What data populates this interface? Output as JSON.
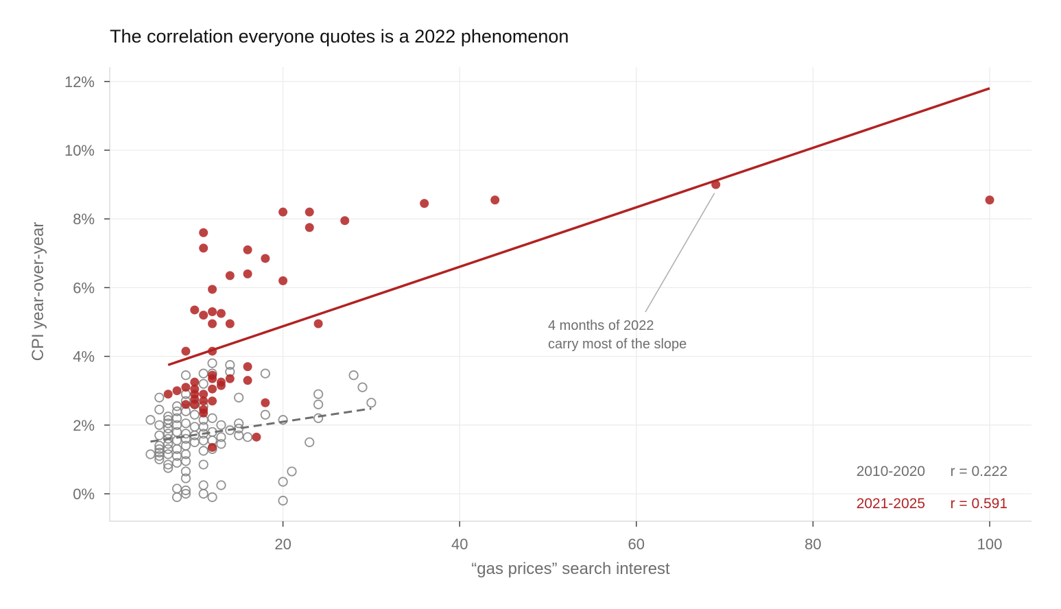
{
  "chart_data": {
    "type": "scatter",
    "title": "The correlation everyone quotes is a 2022 phenomenon",
    "xlabel": "“gas prices” search interest",
    "ylabel": "CPI year-over-year",
    "xlim": [
      0,
      105
    ],
    "ylim": [
      -0.8,
      12.4
    ],
    "x_ticks": [
      20,
      40,
      60,
      80,
      100
    ],
    "x_tick_labels": [
      "20",
      "40",
      "60",
      "80",
      "100"
    ],
    "y_ticks": [
      0,
      2,
      4,
      6,
      8,
      10,
      12
    ],
    "y_tick_labels": [
      "0%",
      "2%",
      "4%",
      "6%",
      "8%",
      "10%",
      "12%"
    ],
    "grid": true,
    "series": [
      {
        "name": "2010-2020",
        "color": "#7f7f7f",
        "marker": "open-circle",
        "r_label": "r = 0.222",
        "trend_line": {
          "style": "dashed",
          "x": [
            5,
            30
          ],
          "y": [
            1.52,
            2.48
          ]
        },
        "points": [
          [
            5,
            2.15
          ],
          [
            5,
            1.15
          ],
          [
            6,
            2.8
          ],
          [
            6,
            2.45
          ],
          [
            6,
            2.0
          ],
          [
            6,
            1.7
          ],
          [
            6,
            1.4
          ],
          [
            6,
            1.3
          ],
          [
            6,
            1.2
          ],
          [
            6,
            1.1
          ],
          [
            6,
            1.0
          ],
          [
            7,
            2.25
          ],
          [
            7,
            2.15
          ],
          [
            7,
            2.05
          ],
          [
            7,
            1.9
          ],
          [
            7,
            1.75
          ],
          [
            7,
            1.6
          ],
          [
            7,
            1.45
          ],
          [
            7,
            1.3
          ],
          [
            7,
            1.15
          ],
          [
            7,
            0.85
          ],
          [
            7,
            0.75
          ],
          [
            8,
            2.55
          ],
          [
            8,
            2.4
          ],
          [
            8,
            2.2
          ],
          [
            8,
            2.0
          ],
          [
            8,
            1.8
          ],
          [
            8,
            1.55
          ],
          [
            8,
            1.3
          ],
          [
            8,
            1.1
          ],
          [
            8,
            0.9
          ],
          [
            8,
            0.15
          ],
          [
            8,
            -0.1
          ],
          [
            9,
            3.45
          ],
          [
            9,
            2.9
          ],
          [
            9,
            2.7
          ],
          [
            9,
            2.4
          ],
          [
            9,
            2.05
          ],
          [
            9,
            1.75
          ],
          [
            9,
            1.6
          ],
          [
            9,
            1.4
          ],
          [
            9,
            1.15
          ],
          [
            9,
            0.95
          ],
          [
            9,
            0.65
          ],
          [
            9,
            0.45
          ],
          [
            9,
            0.1
          ],
          [
            9,
            0.0
          ],
          [
            10,
            2.6
          ],
          [
            10,
            2.3
          ],
          [
            10,
            1.95
          ],
          [
            10,
            1.7
          ],
          [
            10,
            1.5
          ],
          [
            11,
            3.5
          ],
          [
            11,
            3.2
          ],
          [
            11,
            2.55
          ],
          [
            11,
            2.15
          ],
          [
            11,
            1.95
          ],
          [
            11,
            1.75
          ],
          [
            11,
            1.55
          ],
          [
            11,
            1.25
          ],
          [
            11,
            0.85
          ],
          [
            11,
            0.25
          ],
          [
            11,
            0.0
          ],
          [
            12,
            3.8
          ],
          [
            12,
            3.5
          ],
          [
            12,
            2.2
          ],
          [
            12,
            1.8
          ],
          [
            12,
            1.55
          ],
          [
            12,
            1.3
          ],
          [
            12,
            -0.1
          ],
          [
            13,
            2.0
          ],
          [
            13,
            1.65
          ],
          [
            13,
            1.45
          ],
          [
            13,
            0.25
          ],
          [
            14,
            3.75
          ],
          [
            14,
            3.55
          ],
          [
            14,
            1.85
          ],
          [
            15,
            2.8
          ],
          [
            15,
            2.05
          ],
          [
            15,
            1.9
          ],
          [
            15,
            1.7
          ],
          [
            16,
            1.65
          ],
          [
            18,
            3.5
          ],
          [
            18,
            2.3
          ],
          [
            20,
            2.15
          ],
          [
            20,
            0.35
          ],
          [
            20,
            -0.2
          ],
          [
            21,
            0.65
          ],
          [
            23,
            1.5
          ],
          [
            24,
            2.9
          ],
          [
            24,
            2.6
          ],
          [
            24,
            2.2
          ],
          [
            28,
            3.45
          ],
          [
            29,
            3.1
          ],
          [
            30,
            2.65
          ]
        ]
      },
      {
        "name": "2021-2025",
        "color": "#b22222",
        "marker": "filled-circle",
        "r_label": "r = 0.591",
        "trend_line": {
          "style": "solid",
          "x": [
            7,
            100
          ],
          "y": [
            3.75,
            11.8
          ]
        },
        "points": [
          [
            7,
            2.9
          ],
          [
            8,
            3.0
          ],
          [
            9,
            4.15
          ],
          [
            9,
            3.1
          ],
          [
            9,
            2.6
          ],
          [
            10,
            5.35
          ],
          [
            10,
            3.25
          ],
          [
            10,
            3.05
          ],
          [
            10,
            2.9
          ],
          [
            10,
            2.75
          ],
          [
            10,
            2.6
          ],
          [
            11,
            7.6
          ],
          [
            11,
            7.15
          ],
          [
            11,
            5.2
          ],
          [
            11,
            2.9
          ],
          [
            11,
            2.7
          ],
          [
            11,
            2.45
          ],
          [
            11,
            2.35
          ],
          [
            12,
            5.95
          ],
          [
            12,
            5.3
          ],
          [
            12,
            4.95
          ],
          [
            12,
            4.15
          ],
          [
            12,
            3.45
          ],
          [
            12,
            3.35
          ],
          [
            12,
            3.05
          ],
          [
            12,
            2.7
          ],
          [
            12,
            1.35
          ],
          [
            13,
            5.25
          ],
          [
            13,
            3.25
          ],
          [
            13,
            3.15
          ],
          [
            14,
            6.35
          ],
          [
            14,
            4.95
          ],
          [
            14,
            3.35
          ],
          [
            16,
            7.1
          ],
          [
            16,
            6.4
          ],
          [
            16,
            3.7
          ],
          [
            16,
            3.3
          ],
          [
            17,
            1.65
          ],
          [
            18,
            6.85
          ],
          [
            18,
            2.65
          ],
          [
            20,
            8.2
          ],
          [
            20,
            6.2
          ],
          [
            23,
            8.2
          ],
          [
            23,
            7.75
          ],
          [
            24,
            4.95
          ],
          [
            27,
            7.95
          ],
          [
            36,
            8.45
          ],
          [
            44,
            8.55
          ],
          [
            69,
            9.0
          ],
          [
            100,
            8.55
          ]
        ]
      }
    ],
    "annotation": {
      "lines": [
        "4 months of 2022",
        "carry most of the slope"
      ],
      "points_to": {
        "x": 69,
        "y": 8.75
      }
    },
    "stats": [
      {
        "period": "2010-2020",
        "r": "r = 0.222",
        "color": "#6e6e6e"
      },
      {
        "period": "2021-2025",
        "r": "r = 0.591",
        "color": "#b22222"
      }
    ]
  }
}
